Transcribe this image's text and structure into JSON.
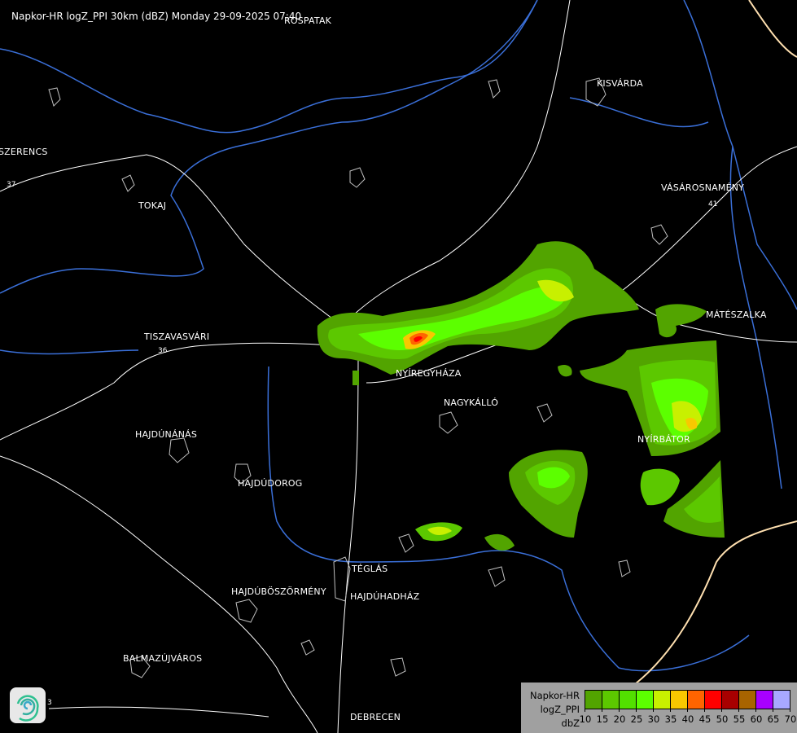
{
  "title": "Napkor-HR logZ_PPI 30km (dBZ) Monday 29-09-2025 07:40",
  "cities": [
    {
      "id": "rospatak",
      "name": "ROSPATAK"
    },
    {
      "id": "kisvarda",
      "name": "KISVÁRDA"
    },
    {
      "id": "szerencs",
      "name": "SZERENCS"
    },
    {
      "id": "tokaj",
      "name": "TOKAJ"
    },
    {
      "id": "vasarosnameny",
      "name": "VÁSÁROSNAMÉNY"
    },
    {
      "id": "tiszavasvari",
      "name": "TISZAVASVÁRI"
    },
    {
      "id": "mateszalka",
      "name": "MÁTÉSZALKA"
    },
    {
      "id": "nyiregyhaza",
      "name": "NYÍREGYHÁZA"
    },
    {
      "id": "nagykallo",
      "name": "NAGYKÁLLÓ"
    },
    {
      "id": "hajdunanas",
      "name": "HAJDÚNÁNÁS"
    },
    {
      "id": "nyirbator",
      "name": "NYÍRBÁTOR"
    },
    {
      "id": "hajdudorog",
      "name": "HAJDÚDOROG"
    },
    {
      "id": "teglas",
      "name": "TÉGLÁS"
    },
    {
      "id": "hajduboszormeny",
      "name": "HAJDÚBÖSZÖRMÉNY"
    },
    {
      "id": "hajduhadhaz",
      "name": "HAJDÚHADHÁZ"
    },
    {
      "id": "balmazujvaros",
      "name": "BALMAZÚJVÁROS"
    },
    {
      "id": "debrecen",
      "name": "DEBRECEN"
    }
  ],
  "roads": [
    "37",
    "36",
    "41",
    "3"
  ],
  "legend": {
    "line1": "Napkor-HR",
    "line2": "logZ_PPI",
    "unit": "dbZ",
    "thresholds": [
      "10",
      "15",
      "20",
      "25",
      "30",
      "35",
      "40",
      "45",
      "50",
      "55",
      "60",
      "65",
      "70"
    ],
    "colors": [
      "#52a400",
      "#5cc800",
      "#52e000",
      "#5cff00",
      "#c8f000",
      "#f8c800",
      "#ff6400",
      "#ff0000",
      "#a80000",
      "#a86400",
      "#a800ff",
      "#a8a8ff"
    ]
  },
  "map_colors": {
    "river": "#3a6fd8",
    "road": "#ffffff",
    "settlement": "#c0c0c0",
    "border": "#ffe0b0"
  }
}
